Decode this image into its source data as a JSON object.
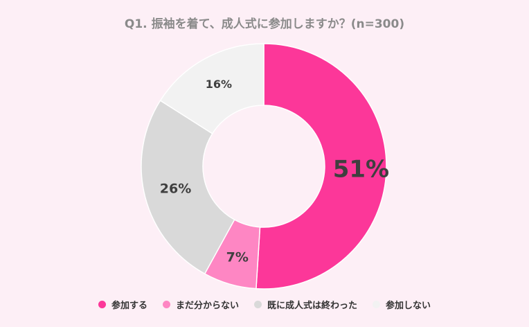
{
  "chart_data": {
    "type": "pie",
    "title": "Q1. 振袖を着て、成人式に参加しますか？(n=300)",
    "categories": [
      "参加する",
      "まだ分からない",
      "既に成人式は終わった",
      "参加しない"
    ],
    "values": [
      51,
      7,
      26,
      16
    ],
    "labels": [
      "51%",
      "7%",
      "26%",
      "16%"
    ],
    "colors": [
      "#fc3799",
      "#fe86c3",
      "#d9d9d9",
      "#f2f2f2"
    ],
    "legend_position": "bottom",
    "donut": true
  }
}
